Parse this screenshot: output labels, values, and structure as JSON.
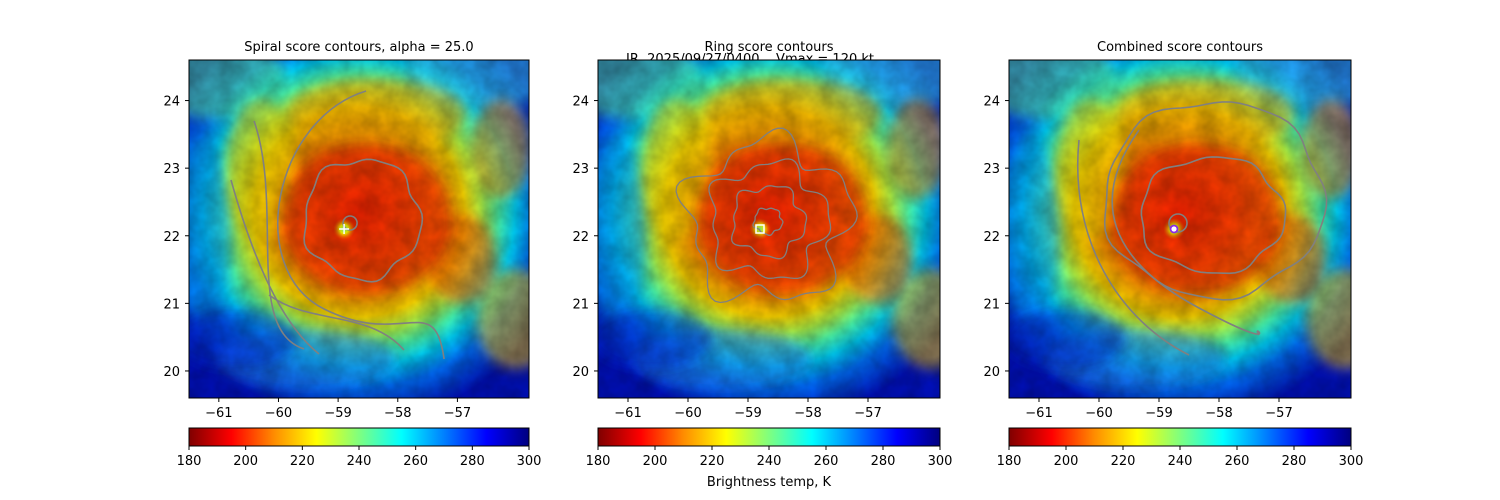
{
  "suptitle": {
    "line1": "IR  2025/09/27/0400    Vmax = 120 kt",
    "line2": ""
  },
  "colorbar": {
    "label": "Brightness temp, K",
    "ticks": [
      180,
      200,
      220,
      240,
      260,
      280,
      300
    ],
    "range": [
      180,
      300
    ],
    "colormap": [
      "#7f0000",
      "#ff0000",
      "#ff8c00",
      "#ffff00",
      "#7fff7f",
      "#00ffff",
      "#0080ff",
      "#0000ff",
      "#00007f"
    ]
  },
  "chart_data": [
    {
      "type": "heatmap",
      "title": "Spiral score contours, alpha = 25.0",
      "x_ticks": [
        -61,
        -60,
        -59,
        -58,
        -57
      ],
      "y_ticks": [
        20,
        21,
        22,
        23,
        24
      ],
      "xlim": [
        -61.5,
        -55.8
      ],
      "ylim": [
        19.6,
        24.6
      ],
      "center_marker": {
        "lon": -58.9,
        "lat": 22.1,
        "symbol": "+",
        "color": "#ffffff"
      },
      "contour_color": "#808080"
    },
    {
      "type": "heatmap",
      "title": "Ring score contours",
      "x_ticks": [
        -61,
        -60,
        -59,
        -58,
        -57
      ],
      "y_ticks": [
        20,
        21,
        22,
        23,
        24
      ],
      "xlim": [
        -61.5,
        -55.8
      ],
      "ylim": [
        19.6,
        24.6
      ],
      "center_marker": {
        "lon": -58.8,
        "lat": 22.1,
        "symbol": "square",
        "color": "#ffffff"
      },
      "contour_color": "#808080"
    },
    {
      "type": "heatmap",
      "title": "Combined score contours",
      "x_ticks": [
        -61,
        -60,
        -59,
        -58,
        -57
      ],
      "y_ticks": [
        20,
        21,
        22,
        23,
        24
      ],
      "xlim": [
        -61.5,
        -55.8
      ],
      "ylim": [
        19.6,
        24.6
      ],
      "center_marker": {
        "lon": -58.75,
        "lat": 22.1,
        "symbol": "circle",
        "color": "#8a2be2"
      },
      "contour_color": "#808080"
    }
  ]
}
